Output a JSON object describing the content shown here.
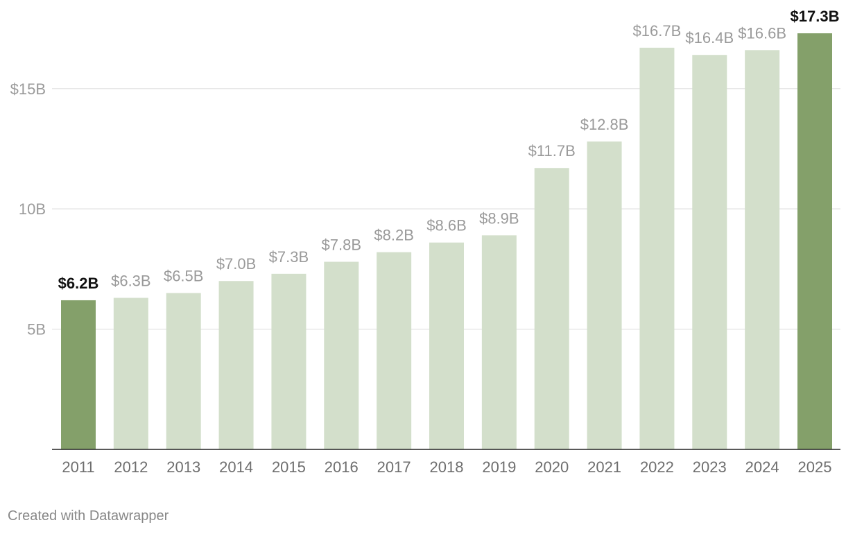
{
  "chart_data": {
    "type": "bar",
    "title": "",
    "xlabel": "",
    "ylabel": "",
    "ylim": [
      0,
      17.3
    ],
    "y_ticks": [
      {
        "value": 5,
        "label": "5B"
      },
      {
        "value": 10,
        "label": "10B"
      },
      {
        "value": 15,
        "label": "$15B"
      }
    ],
    "grid": true,
    "categories": [
      "2011",
      "2012",
      "2013",
      "2014",
      "2015",
      "2016",
      "2017",
      "2018",
      "2019",
      "2020",
      "2021",
      "2022",
      "2023",
      "2024",
      "2025"
    ],
    "values": [
      6.2,
      6.3,
      6.5,
      7.0,
      7.3,
      7.8,
      8.2,
      8.6,
      8.9,
      11.7,
      12.8,
      16.7,
      16.4,
      16.6,
      17.3
    ],
    "labels": [
      "$6.2B",
      "$6.3B",
      "$6.5B",
      "$7.0B",
      "$7.3B",
      "$7.8B",
      "$8.2B",
      "$8.6B",
      "$8.9B",
      "$11.7B",
      "$12.8B",
      "$16.7B",
      "$16.4B",
      "$16.6B",
      "$17.3B"
    ],
    "highlighted": [
      "2011",
      "2025"
    ],
    "colors": {
      "highlight": "#84a06a",
      "base": "#d3dfcb",
      "label_highlight": "#111111",
      "label_base": "#9a9a9a"
    }
  },
  "footer": {
    "credit": "Created with Datawrapper"
  }
}
